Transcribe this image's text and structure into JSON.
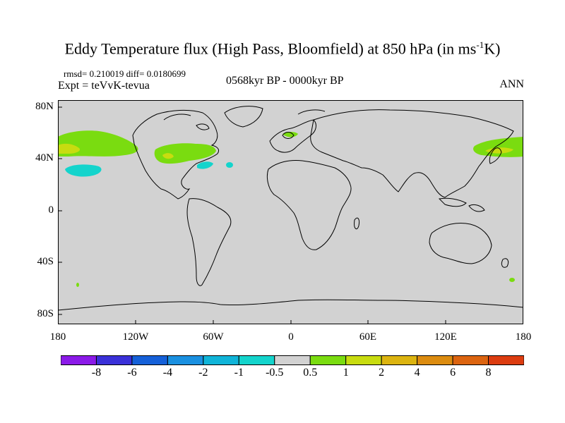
{
  "title_main": "Eddy Temperature flux (High Pass, Bloomfield) at 850 hPa (in ms",
  "title_sup": "-1",
  "title_end": "K)",
  "stats": "rmsd= 0.210019 diff= 0.0180699",
  "experiment": "Expt = teVvK-tevua",
  "period": "0568kyr BP - 0000kyr BP",
  "season": "ANN",
  "lat_labels": [
    "80N",
    "40N",
    "0",
    "40S",
    "80S"
  ],
  "lon_labels": [
    "180",
    "120W",
    "60W",
    "0",
    "60E",
    "120E",
    "180"
  ],
  "colorbar": {
    "colors": [
      "#8b1ae8",
      "#3a30d8",
      "#1560d8",
      "#1a90e0",
      "#10b4d8",
      "#14d4cc",
      "#d2d2d2",
      "#7adc10",
      "#c8dc10",
      "#dcb410",
      "#dc8c10",
      "#dc6410",
      "#dc3c10"
    ],
    "labels": [
      "-8",
      "-6",
      "-4",
      "-2",
      "-1",
      "-0.5",
      "0.5",
      "1",
      "2",
      "4",
      "6",
      "8"
    ]
  },
  "colors": {
    "background_field": "#d2d2d2",
    "coast": "#000000"
  },
  "regions": [
    {
      "name": "north-pacific-green-west",
      "class": "1 to 2",
      "color": "#7adc10"
    },
    {
      "name": "north-pacific-yellow-west",
      "class": "2 to 4",
      "color": "#c8dc10"
    },
    {
      "name": "subtropical-pacific-cyan",
      "class": "-1 to -0.5",
      "color": "#14d4cc"
    },
    {
      "name": "north-america-green",
      "class": "1 to 2",
      "color": "#7adc10"
    },
    {
      "name": "north-america-yellow",
      "class": "2 to 4",
      "color": "#c8dc10"
    },
    {
      "name": "north-atlantic-cyan",
      "class": "-1 to -0.5",
      "color": "#14d4cc"
    },
    {
      "name": "europe-green",
      "class": "1 to 2",
      "color": "#7adc10"
    },
    {
      "name": "east-asia-green",
      "class": "1 to 2",
      "color": "#7adc10"
    },
    {
      "name": "east-asia-yellow",
      "class": "2 to 4",
      "color": "#c8dc10"
    }
  ]
}
